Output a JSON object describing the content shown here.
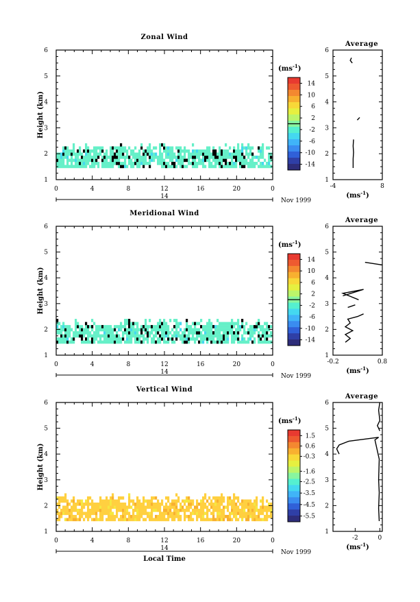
{
  "chart_data": [
    {
      "type": "heatmap",
      "title": "Zonal Wind",
      "ylabel": "Height (km)",
      "xlabel": "",
      "x_ticks": [
        "0",
        "4",
        "8",
        "12",
        "16",
        "20",
        "0"
      ],
      "y_ticks": [
        "1",
        "2",
        "3",
        "4",
        "5",
        "6"
      ],
      "xlim": [
        0,
        24
      ],
      "ylim": [
        1,
        6
      ],
      "date_day": "14",
      "date_month": "Nov 1999",
      "data_height_range": [
        1.45,
        2.4
      ],
      "colorbar": {
        "unit": "(ms",
        "unit_exp": "-1",
        "unit_close": ")",
        "labels": [
          "14",
          "10",
          "6",
          "2",
          "-2",
          "-6",
          "-10",
          "-14"
        ],
        "range": [
          -16,
          16
        ],
        "level_marker": 0
      },
      "fill_color": "#66f0c8",
      "average_profile": {
        "title": "Average",
        "xlabel_unit": "(ms",
        "xlabel_exp": "-1",
        "xlabel_close": ")",
        "x_ticks": [
          "-4",
          "8"
        ],
        "xlim": [
          -4,
          8
        ],
        "ylim": [
          1,
          6
        ],
        "y_ticks": [
          "1",
          "2",
          "3",
          "4",
          "5",
          "6"
        ],
        "segments": [
          [
            [
              0.9,
              1.45
            ],
            [
              0.9,
              1.8
            ],
            [
              1.0,
              2.05
            ],
            [
              0.9,
              2.3
            ],
            [
              1.0,
              2.55
            ]
          ],
          [
            [
              1.9,
              3.3
            ],
            [
              2.5,
              3.4
            ]
          ],
          [
            [
              0.7,
              5.5
            ],
            [
              0.2,
              5.6
            ],
            [
              0.5,
              5.7
            ]
          ]
        ]
      }
    },
    {
      "type": "heatmap",
      "title": "Meridional Wind",
      "ylabel": "Height (km)",
      "xlabel": "",
      "x_ticks": [
        "0",
        "4",
        "8",
        "12",
        "16",
        "20",
        "0"
      ],
      "y_ticks": [
        "1",
        "2",
        "3",
        "4",
        "5",
        "6"
      ],
      "xlim": [
        0,
        24
      ],
      "ylim": [
        1,
        6
      ],
      "date_day": "14",
      "date_month": "Nov 1999",
      "data_height_range": [
        1.45,
        2.45
      ],
      "colorbar": {
        "unit": "(ms",
        "unit_exp": "-1",
        "unit_close": ")",
        "labels": [
          "14",
          "10",
          "6",
          "2",
          "-2",
          "-6",
          "-10",
          "-14"
        ],
        "range": [
          -16,
          16
        ],
        "level_marker": 0
      },
      "fill_color": "#66f0c8",
      "average_profile": {
        "title": "Average",
        "xlabel_unit": "(ms",
        "xlabel_exp": "-1",
        "xlabel_close": ")",
        "x_ticks": [
          "-0.2",
          "0.8"
        ],
        "xlim": [
          -0.2,
          0.8
        ],
        "ylim": [
          1,
          6
        ],
        "y_ticks": [
          "1",
          "2",
          "3",
          "4",
          "5",
          "6"
        ],
        "segments": [
          [
            [
              0.05,
              1.5
            ],
            [
              0.15,
              1.65
            ],
            [
              0.05,
              1.8
            ],
            [
              0.2,
              1.95
            ],
            [
              0.05,
              2.1
            ],
            [
              0.15,
              2.25
            ],
            [
              0.1,
              2.4
            ],
            [
              0.3,
              2.5
            ],
            [
              0.42,
              2.6
            ]
          ],
          [
            [
              0.1,
              2.85
            ],
            [
              0.25,
              2.95
            ]
          ],
          [
            [
              0.0,
              3.3
            ],
            [
              0.42,
              3.55
            ],
            [
              0.0,
              3.4
            ],
            [
              0.32,
              3.15
            ]
          ],
          [
            [
              0.45,
              4.6
            ],
            [
              0.8,
              4.5
            ]
          ]
        ]
      }
    },
    {
      "type": "heatmap",
      "title": "Vertical Wind",
      "ylabel": "Height (km)",
      "xlabel": "Local Time",
      "x_ticks": [
        "0",
        "4",
        "8",
        "12",
        "16",
        "20",
        "0"
      ],
      "y_ticks": [
        "1",
        "2",
        "3",
        "4",
        "5",
        "6"
      ],
      "xlim": [
        0,
        24
      ],
      "ylim": [
        1,
        6
      ],
      "date_day": "14",
      "date_month": "Nov 1999",
      "data_height_range": [
        1.4,
        2.45
      ],
      "colorbar": {
        "unit": "(ms",
        "unit_exp": "-1",
        "unit_close": ")",
        "labels": [
          "1.5",
          "0.6",
          "-0.3",
          "-1.6",
          "-2.5",
          "-3.5",
          "-4.5",
          "-5.5"
        ],
        "range": [
          -6,
          2
        ],
        "level_marker": null
      },
      "fill_color": "#ffd040",
      "average_profile": {
        "title": "Average",
        "xlabel_unit": "(ms",
        "xlabel_exp": "-1",
        "xlabel_close": ")",
        "x_ticks": [
          "-2",
          "0"
        ],
        "xlim": [
          -3.8,
          0.2
        ],
        "ylim": [
          1,
          6
        ],
        "y_ticks": [
          "1",
          "2",
          "3",
          "4",
          "5",
          "6"
        ],
        "segments": [
          [
            [
              -0.05,
              1.4
            ],
            [
              -0.1,
              1.9
            ],
            [
              -0.05,
              2.5
            ],
            [
              -0.1,
              3.0
            ],
            [
              -0.05,
              3.8
            ],
            [
              -0.4,
              4.55
            ],
            [
              -0.1,
              4.65
            ],
            [
              -2.5,
              4.5
            ],
            [
              -3.3,
              4.35
            ],
            [
              -3.5,
              4.2
            ],
            [
              -3.3,
              4.0
            ]
          ],
          [
            [
              0.0,
              4.9
            ],
            [
              -0.2,
              5.1
            ],
            [
              0.0,
              5.3
            ],
            [
              -0.1,
              5.7
            ],
            [
              0.0,
              6.0
            ]
          ]
        ]
      }
    }
  ]
}
